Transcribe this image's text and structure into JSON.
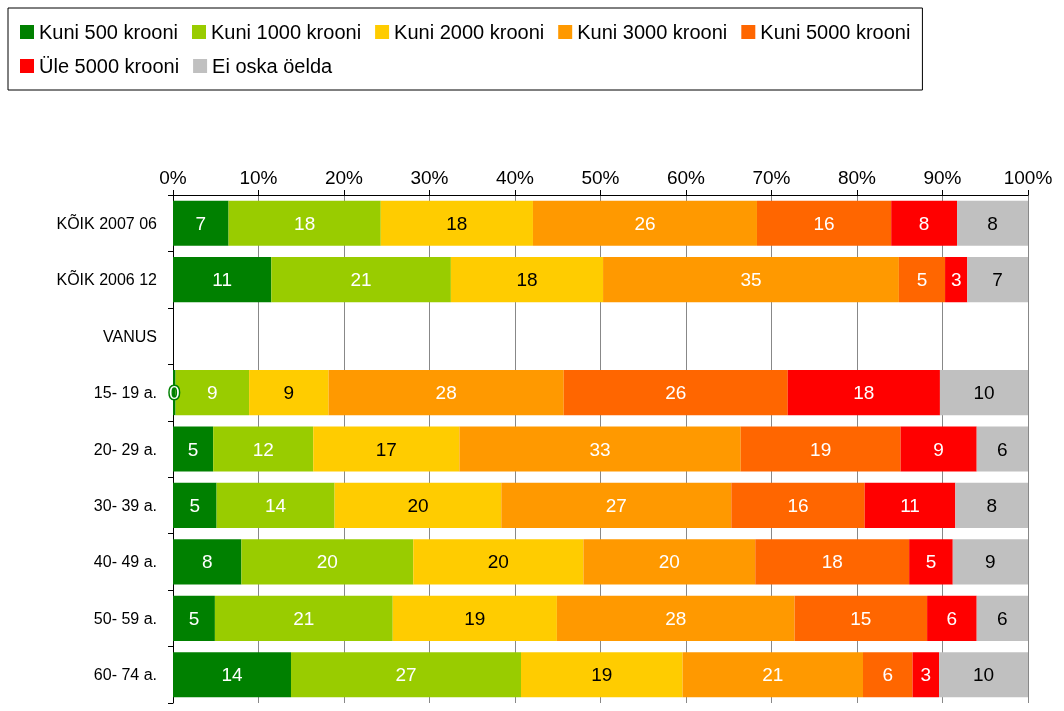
{
  "chart_data": {
    "type": "bar",
    "orientation": "horizontal",
    "stacked": true,
    "categories": [
      "KÕIK 2007 06",
      "KÕIK 2006 12",
      "VANUS",
      "15- 19 a.",
      "20- 29 a.",
      "30- 39 a.",
      "40- 49 a.",
      "50- 59 a.",
      "60- 74 a."
    ],
    "series": [
      {
        "name": "Kuni 500 krooni",
        "color": "#008000",
        "values": [
          6.5,
          11.5,
          null,
          0.3,
          4.7,
          5.1,
          8.0,
          4.9,
          13.8
        ],
        "value_labels": [
          "7",
          "11",
          null,
          "0",
          "5",
          "5",
          "8",
          "5",
          "14"
        ]
      },
      {
        "name": "Kuni 1000 krooni",
        "color": "#99cc00",
        "values": [
          17.8,
          21.0,
          null,
          8.6,
          11.7,
          13.8,
          20.1,
          20.8,
          26.9
        ],
        "value_labels": [
          "18",
          "21",
          null,
          "9",
          "12",
          "14",
          "20",
          "21",
          "27"
        ]
      },
      {
        "name": "Kuni 2000 krooni",
        "color": "#ffcc00",
        "values": [
          17.8,
          17.8,
          null,
          9.3,
          17.1,
          19.5,
          19.9,
          19.2,
          18.9
        ],
        "value_labels": [
          "18",
          "18",
          null,
          "9",
          "17",
          "20",
          "20",
          "19",
          "19"
        ]
      },
      {
        "name": "Kuni 3000 krooni",
        "color": "#ff9900",
        "values": [
          26.2,
          34.6,
          null,
          27.5,
          32.9,
          26.9,
          20.1,
          27.8,
          21.1
        ],
        "value_labels": [
          "26",
          "35",
          null,
          "28",
          "33",
          "27",
          "20",
          "28",
          "21"
        ]
      },
      {
        "name": "Kuni 5000 krooni",
        "color": "#ff6600",
        "values": [
          15.7,
          5.4,
          null,
          26.2,
          18.7,
          15.6,
          18.0,
          15.5,
          5.8
        ],
        "value_labels": [
          "16",
          "5",
          null,
          "26",
          "19",
          "16",
          "18",
          "15",
          "6"
        ]
      },
      {
        "name": "Üle 5000 krooni",
        "color": "#ff0000",
        "values": [
          7.7,
          2.6,
          null,
          17.8,
          8.9,
          10.6,
          5.1,
          5.8,
          3.1
        ],
        "value_labels": [
          "8",
          "3",
          null,
          "18",
          "9",
          "11",
          "5",
          "6",
          "3"
        ]
      },
      {
        "name": "Ei oska öelda",
        "color": "#c0c0c0",
        "values": [
          8.3,
          7.1,
          null,
          10.3,
          6.0,
          8.5,
          8.8,
          6.0,
          10.4
        ],
        "value_labels": [
          "8",
          "7",
          null,
          "10",
          "6",
          "8",
          "9",
          "6",
          "10"
        ]
      }
    ],
    "xlim": [
      0,
      100
    ],
    "xticks": [
      {
        "value": 0,
        "label": "0%"
      },
      {
        "value": 10,
        "label": "10%"
      },
      {
        "value": 20,
        "label": "20%"
      },
      {
        "value": 30,
        "label": "30%"
      },
      {
        "value": 40,
        "label": "40%"
      },
      {
        "value": 50,
        "label": "50%"
      },
      {
        "value": 60,
        "label": "60%"
      },
      {
        "value": 70,
        "label": "70%"
      },
      {
        "value": 80,
        "label": "80%"
      },
      {
        "value": 90,
        "label": "90%"
      },
      {
        "value": 100,
        "label": "100%"
      }
    ],
    "grid": "x",
    "legend": "top"
  }
}
